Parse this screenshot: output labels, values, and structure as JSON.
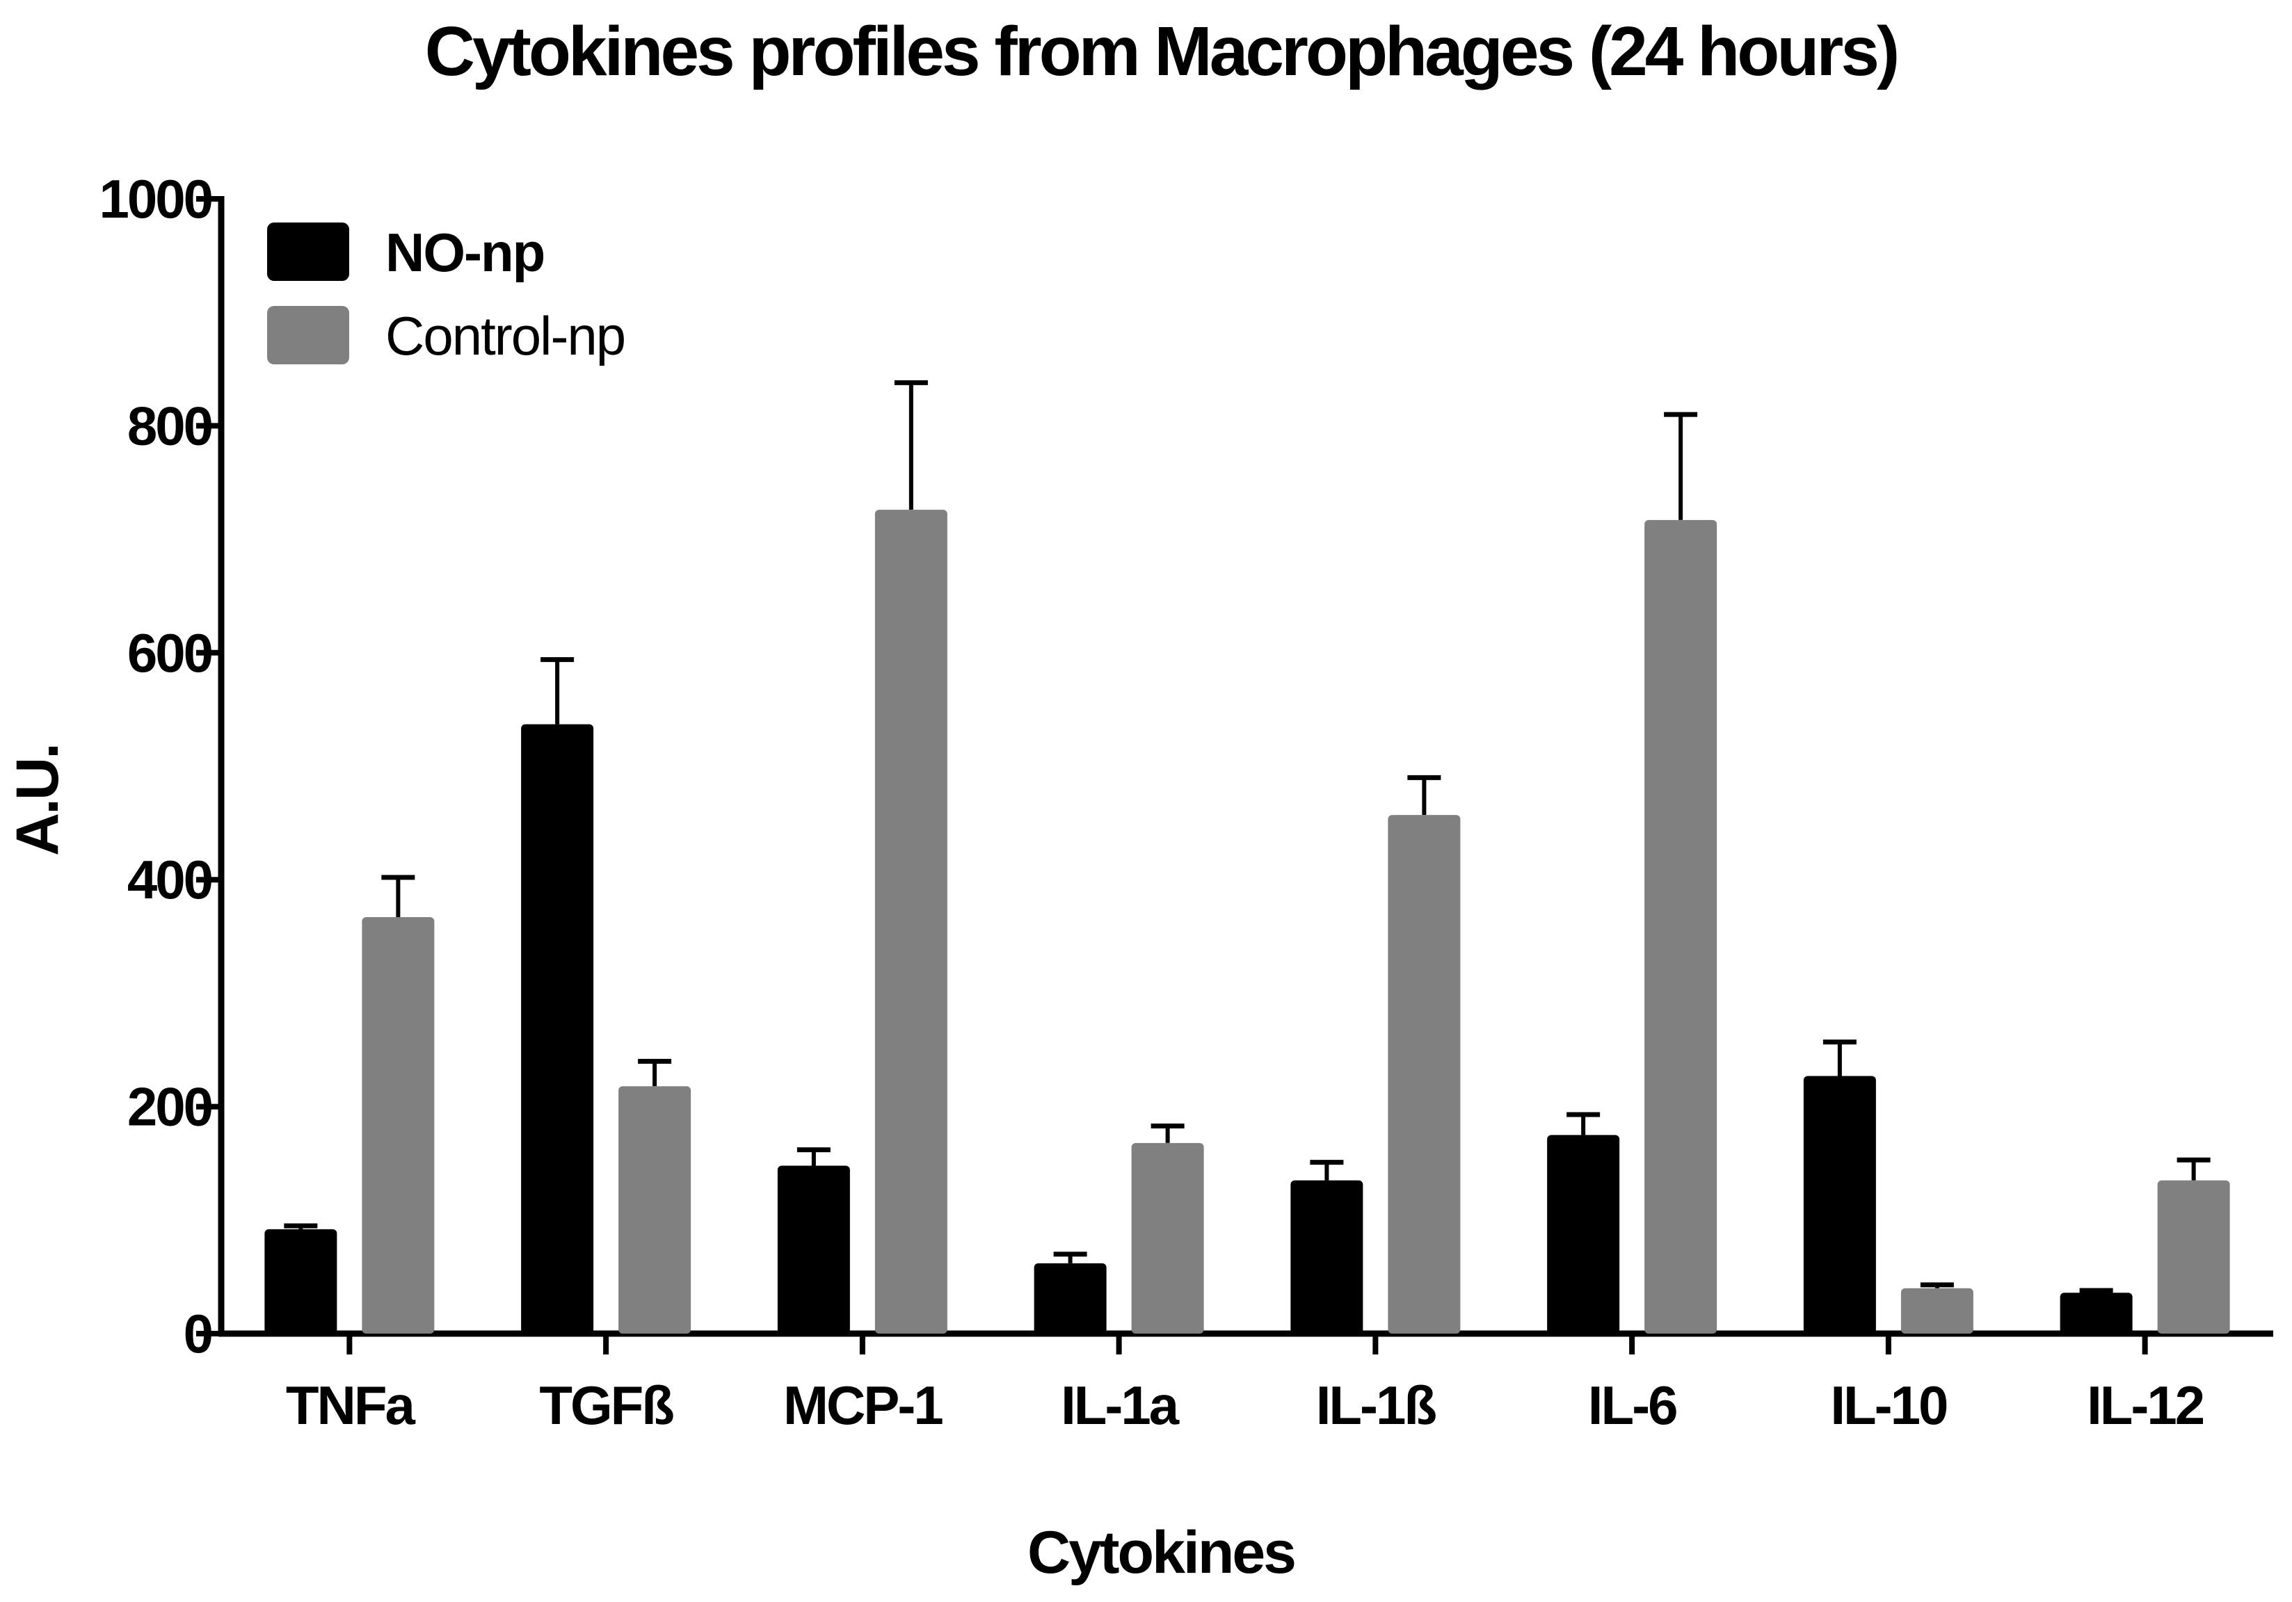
{
  "chart_data": {
    "type": "bar",
    "title": "Cytokines profiles from Macrophages (24 hours)",
    "xlabel": "Cytokines",
    "ylabel": "A.U.",
    "ylim": [
      0,
      1000
    ],
    "yticks": [
      "0",
      "200",
      "400",
      "600",
      "800",
      "1000"
    ],
    "categories": [
      "TNFa",
      "TGFß",
      "MCP-1",
      "IL-1a",
      "IL-1ß",
      "IL-6",
      "IL-10",
      "IL-12"
    ],
    "legend_position": "top-left",
    "series": [
      {
        "name": "NO-np",
        "color": "#000000",
        "values": [
          92,
          537,
          148,
          62,
          135,
          175,
          227,
          36
        ],
        "errors": [
          3,
          57,
          14,
          8,
          16,
          18,
          30,
          2
        ]
      },
      {
        "name": "Control-np",
        "color": "#808080",
        "values": [
          367,
          218,
          726,
          168,
          457,
          717,
          40,
          135
        ],
        "errors": [
          35,
          22,
          112,
          15,
          33,
          93,
          3,
          18
        ]
      }
    ]
  }
}
